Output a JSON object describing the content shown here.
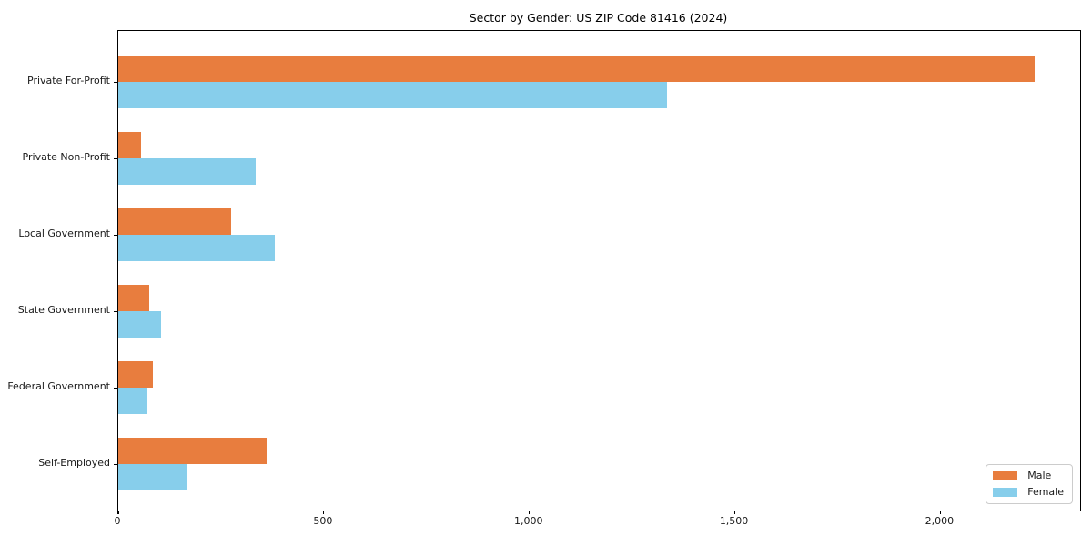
{
  "chart_data": {
    "type": "bar",
    "orientation": "horizontal",
    "title": "Sector by Gender: US ZIP Code 81416 (2024)",
    "categories": [
      "Private For-Profit",
      "Private Non-Profit",
      "Local Government",
      "State Government",
      "Federal Government",
      "Self-Employed"
    ],
    "series": [
      {
        "name": "Male",
        "color": "#e87d3e",
        "values": [
          2230,
          55,
          275,
          75,
          85,
          360
        ]
      },
      {
        "name": "Female",
        "color": "#87ceeb",
        "values": [
          1335,
          335,
          380,
          105,
          70,
          165
        ]
      }
    ],
    "xlabel": "",
    "ylabel": "",
    "xlim": [
      0,
      2340
    ],
    "xticks": {
      "values": [
        0,
        500,
        1000,
        1500,
        2000
      ],
      "labels": [
        "0",
        "500",
        "1,000",
        "1,500",
        "2,000"
      ]
    },
    "grid": false,
    "legend": {
      "position": "lower right"
    }
  }
}
